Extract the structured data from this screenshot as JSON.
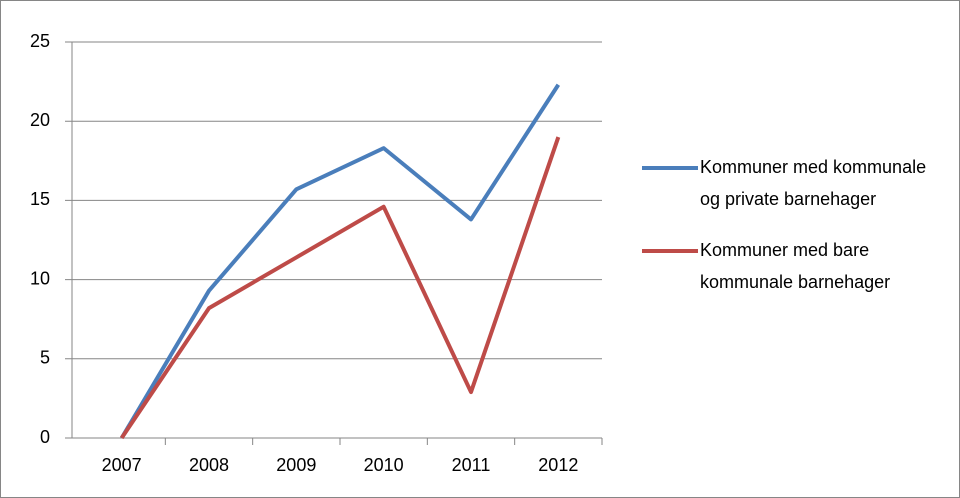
{
  "chart_data": {
    "type": "line",
    "categories": [
      "2007",
      "2008",
      "2009",
      "2010",
      "2011",
      "2012"
    ],
    "series": [
      {
        "name": "Kommuner med kommunale og private barnehager",
        "color": "#4a7ebb",
        "values": [
          0,
          9.3,
          15.7,
          18.3,
          13.8,
          22.3
        ]
      },
      {
        "name": "Kommuner med bare kommunale barnehager",
        "color": "#be4b48",
        "values": [
          0,
          8.2,
          11.4,
          14.6,
          2.9,
          19.0
        ]
      }
    ],
    "ylim": [
      0,
      25
    ],
    "yticks": [
      0,
      5,
      10,
      15,
      20,
      25
    ],
    "grid": true,
    "legend": "right"
  }
}
